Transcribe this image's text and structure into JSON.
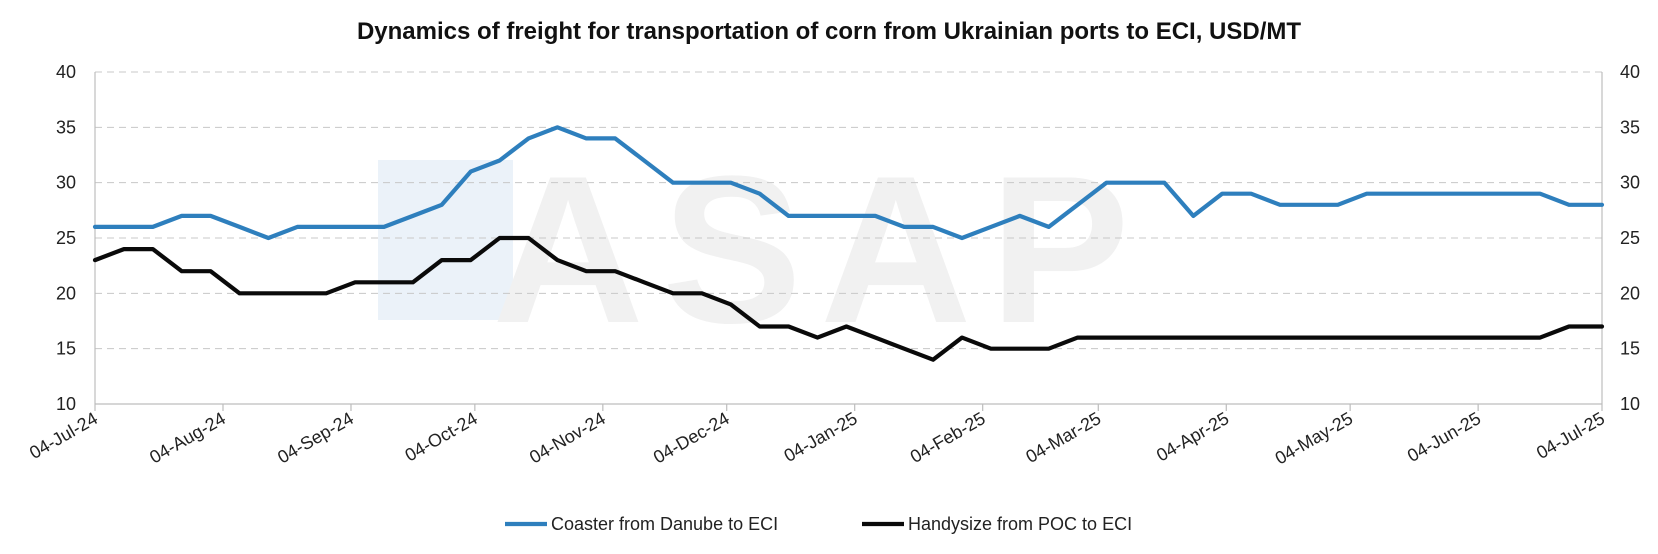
{
  "chart_data": {
    "type": "line",
    "title": "Dynamics of freight for transportation of corn from Ukrainian ports to ECI, USD/MT",
    "xlabel": "",
    "ylabel": "",
    "ylim": [
      10,
      40
    ],
    "yticks": [
      10,
      15,
      20,
      25,
      30,
      35,
      40
    ],
    "xlim": [
      "2024-07-04",
      "2025-07-04"
    ],
    "xticks": [
      {
        "date": "2024-07-04",
        "label": "04-Jul-24"
      },
      {
        "date": "2024-08-04",
        "label": "04-Aug-24"
      },
      {
        "date": "2024-09-04",
        "label": "04-Sep-24"
      },
      {
        "date": "2024-10-04",
        "label": "04-Oct-24"
      },
      {
        "date": "2024-11-04",
        "label": "04-Nov-24"
      },
      {
        "date": "2024-12-04",
        "label": "04-Dec-24"
      },
      {
        "date": "2025-01-04",
        "label": "04-Jan-25"
      },
      {
        "date": "2025-02-04",
        "label": "04-Feb-25"
      },
      {
        "date": "2025-03-04",
        "label": "04-Mar-25"
      },
      {
        "date": "2025-04-04",
        "label": "04-Apr-25"
      },
      {
        "date": "2025-05-04",
        "label": "04-May-25"
      },
      {
        "date": "2025-06-04",
        "label": "04-Jun-25"
      },
      {
        "date": "2025-07-04",
        "label": "04-Jul-25"
      }
    ],
    "grid": true,
    "secondary_y_axis_mirrored": true,
    "legend_position": "bottom",
    "watermark": "ASAP",
    "series": [
      {
        "name": "Coaster from Danube to ECI",
        "color": "#2e7fbd",
        "points": [
          [
            "2024-07-04",
            26
          ],
          [
            "2024-07-11",
            26
          ],
          [
            "2024-07-18",
            26
          ],
          [
            "2024-07-25",
            27
          ],
          [
            "2024-08-01",
            27
          ],
          [
            "2024-08-08",
            26
          ],
          [
            "2024-08-15",
            25
          ],
          [
            "2024-08-22",
            26
          ],
          [
            "2024-08-29",
            26
          ],
          [
            "2024-09-05",
            26
          ],
          [
            "2024-09-12",
            26
          ],
          [
            "2024-09-19",
            27
          ],
          [
            "2024-09-26",
            28
          ],
          [
            "2024-10-03",
            31
          ],
          [
            "2024-10-10",
            32
          ],
          [
            "2024-10-17",
            34
          ],
          [
            "2024-10-24",
            35
          ],
          [
            "2024-10-31",
            34
          ],
          [
            "2024-11-07",
            34
          ],
          [
            "2024-11-14",
            32
          ],
          [
            "2024-11-21",
            30
          ],
          [
            "2024-11-28",
            30
          ],
          [
            "2024-12-05",
            30
          ],
          [
            "2024-12-12",
            29
          ],
          [
            "2024-12-19",
            27
          ],
          [
            "2024-12-26",
            27
          ],
          [
            "2025-01-02",
            27
          ],
          [
            "2025-01-09",
            27
          ],
          [
            "2025-01-16",
            26
          ],
          [
            "2025-01-23",
            26
          ],
          [
            "2025-01-30",
            25
          ],
          [
            "2025-02-06",
            26
          ],
          [
            "2025-02-13",
            27
          ],
          [
            "2025-02-20",
            26
          ],
          [
            "2025-02-27",
            28
          ],
          [
            "2025-03-06",
            30
          ],
          [
            "2025-03-13",
            30
          ],
          [
            "2025-03-20",
            30
          ],
          [
            "2025-03-27",
            27
          ],
          [
            "2025-04-03",
            29
          ],
          [
            "2025-04-10",
            29
          ],
          [
            "2025-04-17",
            28
          ],
          [
            "2025-04-24",
            28
          ],
          [
            "2025-05-01",
            28
          ],
          [
            "2025-05-08",
            29
          ],
          [
            "2025-05-15",
            29
          ],
          [
            "2025-05-22",
            29
          ],
          [
            "2025-05-29",
            29
          ],
          [
            "2025-06-05",
            29
          ],
          [
            "2025-06-12",
            29
          ],
          [
            "2025-06-19",
            29
          ],
          [
            "2025-06-26",
            28
          ],
          [
            "2025-07-03",
            28
          ],
          [
            "2025-07-04",
            28
          ]
        ]
      },
      {
        "name": "Handysize from POC to ECI",
        "color": "#0a0a0a",
        "points": [
          [
            "2024-07-04",
            23
          ],
          [
            "2024-07-11",
            24
          ],
          [
            "2024-07-18",
            24
          ],
          [
            "2024-07-25",
            22
          ],
          [
            "2024-08-01",
            22
          ],
          [
            "2024-08-08",
            20
          ],
          [
            "2024-08-15",
            20
          ],
          [
            "2024-08-22",
            20
          ],
          [
            "2024-08-29",
            20
          ],
          [
            "2024-09-05",
            21
          ],
          [
            "2024-09-12",
            21
          ],
          [
            "2024-09-19",
            21
          ],
          [
            "2024-09-26",
            23
          ],
          [
            "2024-10-03",
            23
          ],
          [
            "2024-10-10",
            25
          ],
          [
            "2024-10-17",
            25
          ],
          [
            "2024-10-24",
            23
          ],
          [
            "2024-10-31",
            22
          ],
          [
            "2024-11-07",
            22
          ],
          [
            "2024-11-14",
            21
          ],
          [
            "2024-11-21",
            20
          ],
          [
            "2024-11-28",
            20
          ],
          [
            "2024-12-05",
            19
          ],
          [
            "2024-12-12",
            17
          ],
          [
            "2024-12-19",
            17
          ],
          [
            "2024-12-26",
            16
          ],
          [
            "2025-01-02",
            17
          ],
          [
            "2025-01-09",
            16
          ],
          [
            "2025-01-16",
            15
          ],
          [
            "2025-01-23",
            14
          ],
          [
            "2025-01-30",
            16
          ],
          [
            "2025-02-06",
            15
          ],
          [
            "2025-02-13",
            15
          ],
          [
            "2025-02-20",
            15
          ],
          [
            "2025-02-27",
            16
          ],
          [
            "2025-03-06",
            16
          ],
          [
            "2025-03-13",
            16
          ],
          [
            "2025-03-20",
            16
          ],
          [
            "2025-03-27",
            16
          ],
          [
            "2025-04-03",
            16
          ],
          [
            "2025-04-10",
            16
          ],
          [
            "2025-04-17",
            16
          ],
          [
            "2025-04-24",
            16
          ],
          [
            "2025-05-01",
            16
          ],
          [
            "2025-05-08",
            16
          ],
          [
            "2025-05-15",
            16
          ],
          [
            "2025-05-22",
            16
          ],
          [
            "2025-05-29",
            16
          ],
          [
            "2025-06-05",
            16
          ],
          [
            "2025-06-12",
            16
          ],
          [
            "2025-06-19",
            16
          ],
          [
            "2025-06-26",
            17
          ],
          [
            "2025-07-03",
            17
          ],
          [
            "2025-07-04",
            17
          ]
        ]
      }
    ]
  }
}
